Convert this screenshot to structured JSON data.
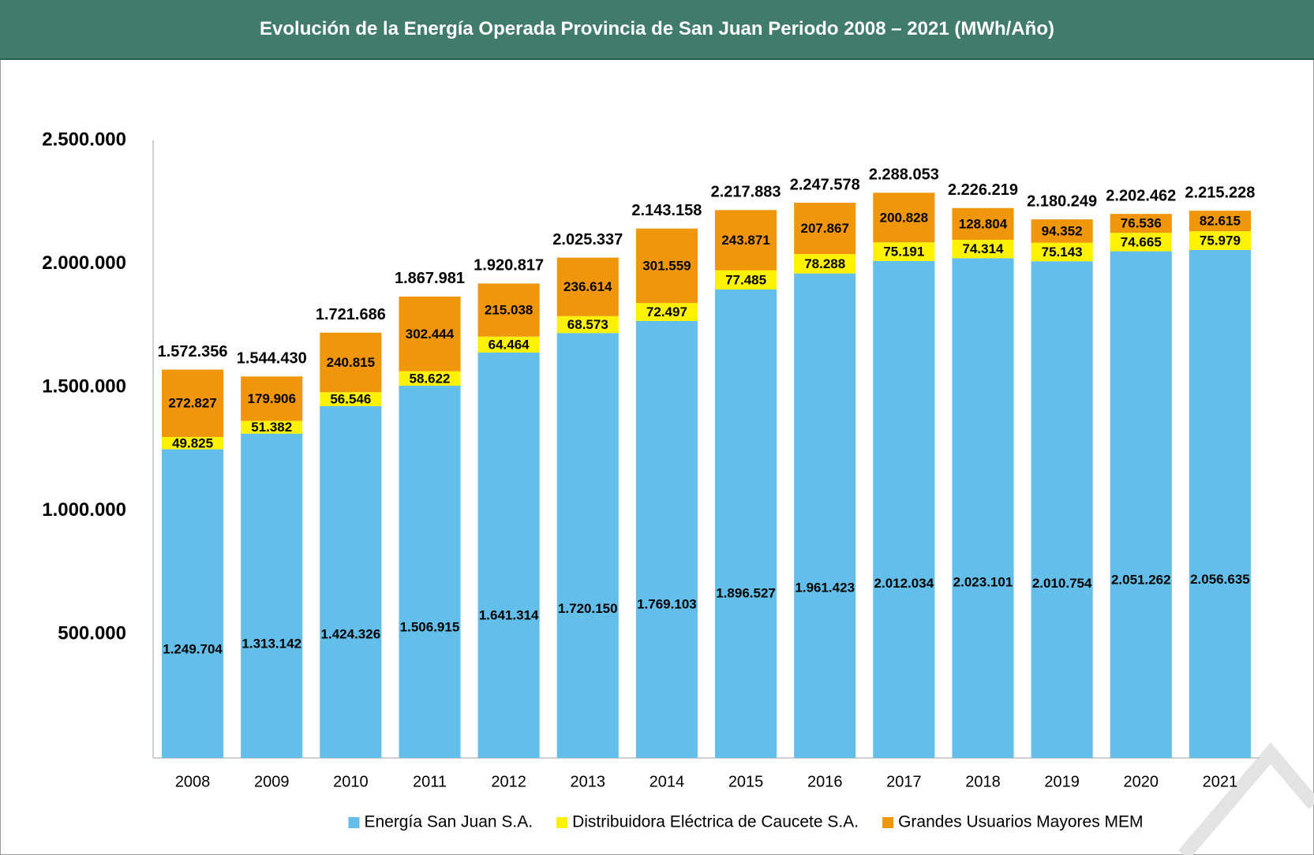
{
  "chart_data": {
    "type": "stacked_bar",
    "title": "Evolución de la Energía Operada Provincia de San Juan Periodo 2008 – 2021 (MWh/Año)",
    "categories": [
      "2008",
      "2009",
      "2010",
      "2011",
      "2012",
      "2013",
      "2014",
      "2015",
      "2016",
      "2017",
      "2018",
      "2019",
      "2020",
      "2021"
    ],
    "series": [
      {
        "name": "Energía San Juan S.A.",
        "color": "#63bfea",
        "values": [
          1249704,
          1313142,
          1424326,
          1506915,
          1641314,
          1720150,
          1769103,
          1896527,
          1961423,
          2012034,
          2023101,
          2010754,
          2051262,
          2056635
        ],
        "value_labels": [
          "1.249.704",
          "1.313.142",
          "1.424.326",
          "1.506.915",
          "1.641.314",
          "1.720.150",
          "1.769.103",
          "1.896.527",
          "1.961.423",
          "2.012.034",
          "2.023.101",
          "2.010.754",
          "2.051.262",
          "2.056.635"
        ]
      },
      {
        "name": "Distribuidora Eléctrica de Caucete S.A.",
        "color": "#fff200",
        "values": [
          49825,
          51382,
          56546,
          58622,
          64464,
          68573,
          72497,
          77485,
          78288,
          75191,
          74314,
          75143,
          74665,
          75979
        ],
        "value_labels": [
          "49.825",
          "51.382",
          "56.546",
          "58.622",
          "64.464",
          "68.573",
          "72.497",
          "77.485",
          "78.288",
          "75.191",
          "74.314",
          "75.143",
          "74.665",
          "75.979"
        ]
      },
      {
        "name": "Grandes Usuarios Mayores MEM",
        "color": "#f0960a",
        "values": [
          272827,
          179906,
          240815,
          302444,
          215038,
          236614,
          301559,
          243871,
          207867,
          200828,
          128804,
          94352,
          76536,
          82615
        ],
        "value_labels": [
          "272.827",
          "179.906",
          "240.815",
          "302.444",
          "215.038",
          "236.614",
          "301.559",
          "243.871",
          "207.867",
          "200.828",
          "128.804",
          "94.352",
          "76.536",
          "82.615"
        ]
      }
    ],
    "totals": [
      1572356,
      1544430,
      1721686,
      1867981,
      1920817,
      2025337,
      2143158,
      2217883,
      2247578,
      2288053,
      2226219,
      2180249,
      2202462,
      2215228
    ],
    "total_labels": [
      "1.572.356",
      "1.544.430",
      "1.721.686",
      "1.867.981",
      "1.920.817",
      "2.025.337",
      "2.143.158",
      "2.217.883",
      "2.247.578",
      "2.288.053",
      "2.226.219",
      "2.180.249",
      "2.202.462",
      "2.215.228"
    ],
    "ylim": [
      0,
      2500000
    ],
    "yticks": [
      {
        "value": 500000,
        "label": "500.000"
      },
      {
        "value": 1000000,
        "label": "1.000.000"
      },
      {
        "value": 1500000,
        "label": "1.500.000"
      },
      {
        "value": 2000000,
        "label": "2.000.000"
      },
      {
        "value": 2500000,
        "label": "2.500.000"
      }
    ],
    "grid": false,
    "legend": "bottom"
  }
}
